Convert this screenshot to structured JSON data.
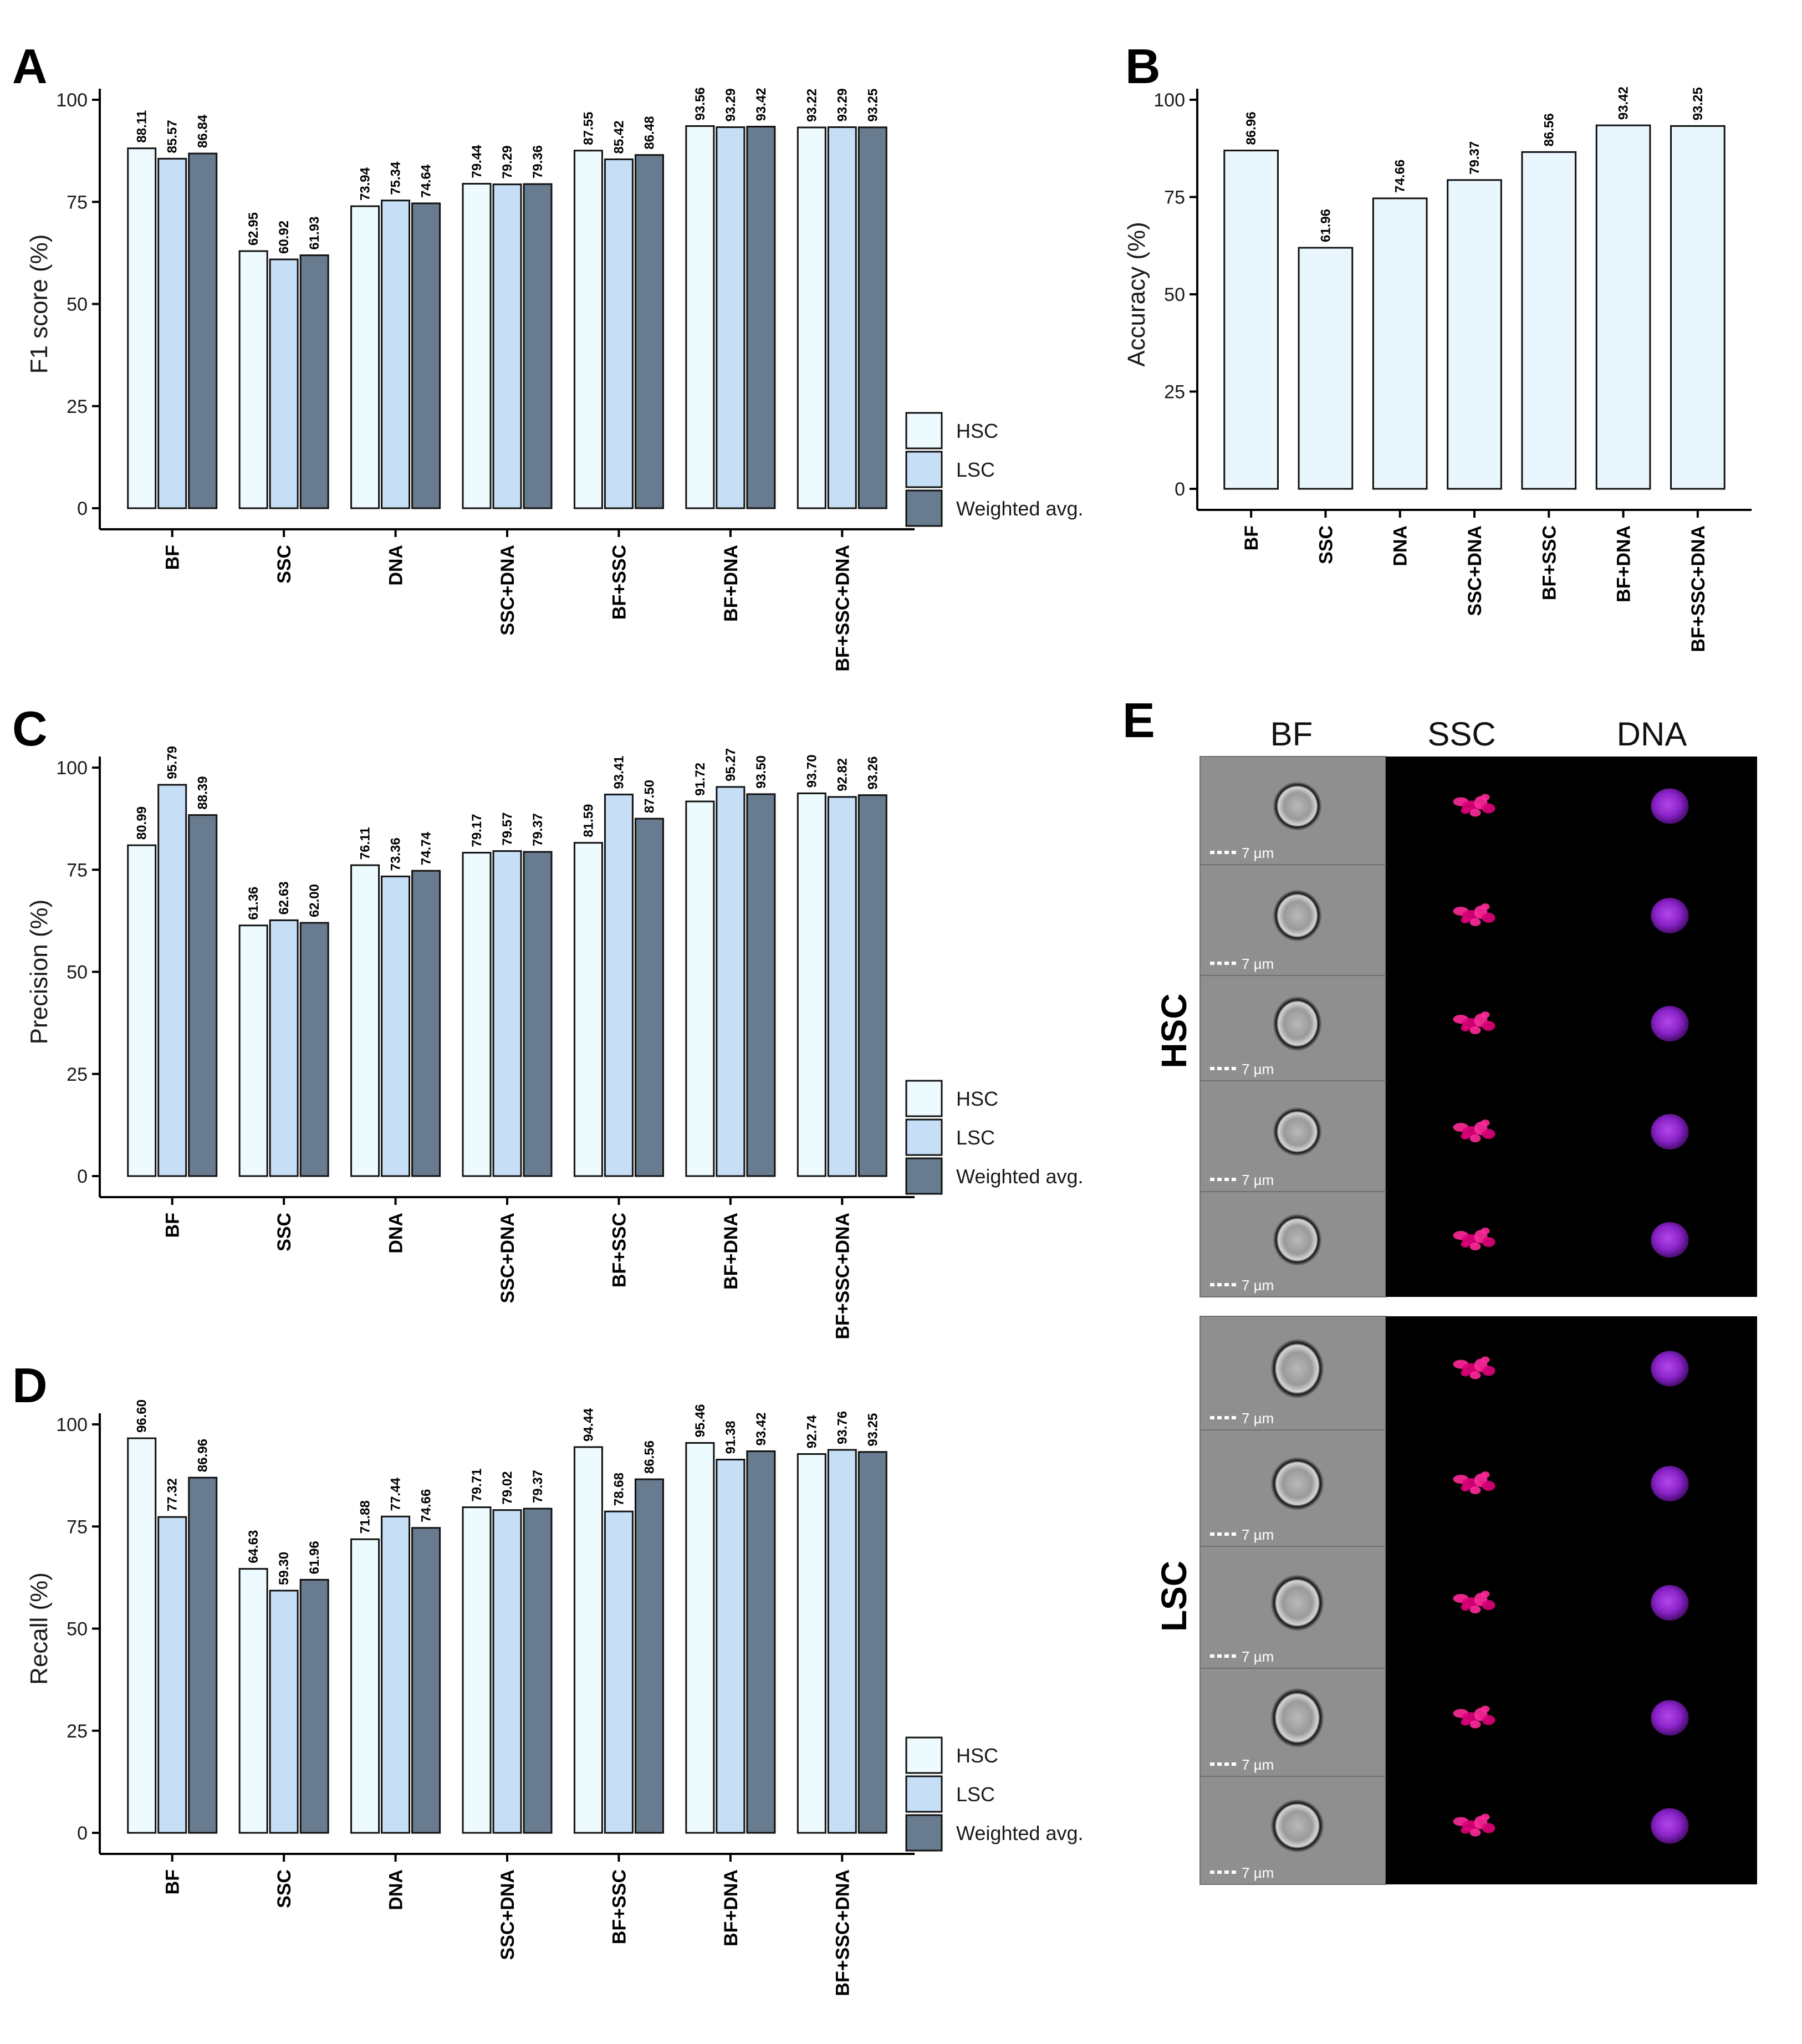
{
  "chart_data": [
    {
      "id": "A",
      "panel_label": "A",
      "type": "bar",
      "ylabel": "F1 score (%)",
      "ylim": [
        0,
        100
      ],
      "yticks": [
        0,
        25,
        50,
        75,
        100
      ],
      "categories": [
        "BF",
        "SSC",
        "DNA",
        "SSC+DNA",
        "BF+SSC",
        "BF+DNA",
        "BF+SSC+DNA"
      ],
      "series": [
        {
          "name": "HSC",
          "values": [
            88.11,
            62.95,
            73.94,
            79.44,
            87.55,
            93.56,
            93.22
          ],
          "labels": [
            "88.11",
            "62.95",
            "73.94",
            "79.44",
            "87.55",
            "93.56",
            "93.22"
          ]
        },
        {
          "name": "LSC",
          "values": [
            85.57,
            60.92,
            75.34,
            79.29,
            85.42,
            93.29,
            93.29
          ],
          "labels": [
            "85.57",
            "60.92",
            "75.34",
            "79.29",
            "85.42",
            "93.29",
            "93.29"
          ]
        },
        {
          "name": "Weighted avg.",
          "values": [
            86.84,
            61.93,
            74.64,
            79.36,
            86.48,
            93.42,
            93.25
          ],
          "labels": [
            "86.84",
            "61.93",
            "74.64",
            "79.36",
            "86.48",
            "93.42",
            "93.25"
          ]
        }
      ],
      "legend": [
        "HSC",
        "LSC",
        "Weighted avg."
      ],
      "legend_position": "bottom-right"
    },
    {
      "id": "B",
      "panel_label": "B",
      "type": "bar",
      "ylabel": "Accuracy (%)",
      "ylim": [
        0,
        100
      ],
      "yticks": [
        0,
        25,
        50,
        75,
        100
      ],
      "categories": [
        "BF",
        "SSC",
        "DNA",
        "SSC+DNA",
        "BF+SSC",
        "BF+DNA",
        "BF+SSC+DNA"
      ],
      "series": [
        {
          "name": "Accuracy",
          "values": [
            86.96,
            61.96,
            74.66,
            79.37,
            86.56,
            93.42,
            93.25
          ],
          "labels": [
            "86.96",
            "61.96",
            "74.66",
            "79.37",
            "86.56",
            "93.42",
            "93.25"
          ]
        }
      ]
    },
    {
      "id": "C",
      "panel_label": "C",
      "type": "bar",
      "ylabel": "Precision (%)",
      "ylim": [
        0,
        100
      ],
      "yticks": [
        0,
        25,
        50,
        75,
        100
      ],
      "categories": [
        "BF",
        "SSC",
        "DNA",
        "SSC+DNA",
        "BF+SSC",
        "BF+DNA",
        "BF+SSC+DNA"
      ],
      "series": [
        {
          "name": "HSC",
          "values": [
            80.99,
            61.36,
            76.11,
            79.17,
            81.59,
            91.72,
            93.7
          ],
          "labels": [
            "80.99",
            "61.36",
            "76.11",
            "79.17",
            "81.59",
            "91.72",
            "93.70"
          ]
        },
        {
          "name": "LSC",
          "values": [
            95.79,
            62.63,
            73.36,
            79.57,
            93.41,
            95.27,
            92.82
          ],
          "labels": [
            "95.79",
            "62.63",
            "73.36",
            "79.57",
            "93.41",
            "95.27",
            "92.82"
          ]
        },
        {
          "name": "Weighted avg.",
          "values": [
            88.39,
            62.0,
            74.74,
            79.37,
            87.5,
            93.5,
            93.26
          ],
          "labels": [
            "88.39",
            "62.00",
            "74.74",
            "79.37",
            "87.50",
            "93.50",
            "93.26"
          ]
        }
      ],
      "legend": [
        "HSC",
        "LSC",
        "Weighted avg."
      ],
      "legend_position": "bottom-right"
    },
    {
      "id": "D",
      "panel_label": "D",
      "type": "bar",
      "ylabel": "Recall (%)",
      "ylim": [
        0,
        100
      ],
      "yticks": [
        0,
        25,
        50,
        75,
        100
      ],
      "categories": [
        "BF",
        "SSC",
        "DNA",
        "SSC+DNA",
        "BF+SSC",
        "BF+DNA",
        "BF+SSC+DNA"
      ],
      "series": [
        {
          "name": "HSC",
          "values": [
            96.6,
            64.63,
            71.88,
            79.71,
            94.44,
            95.46,
            92.74
          ],
          "labels": [
            "96.60",
            "64.63",
            "71.88",
            "79.71",
            "94.44",
            "95.46",
            "92.74"
          ]
        },
        {
          "name": "LSC",
          "values": [
            77.32,
            59.3,
            77.44,
            79.02,
            78.68,
            91.38,
            93.76
          ],
          "labels": [
            "77.32",
            "59.30",
            "77.44",
            "79.02",
            "78.68",
            "91.38",
            "93.76"
          ]
        },
        {
          "name": "Weighted avg.",
          "values": [
            86.96,
            61.96,
            74.66,
            79.37,
            86.56,
            93.42,
            93.25
          ],
          "labels": [
            "86.96",
            "61.96",
            "74.66",
            "79.37",
            "86.56",
            "93.42",
            "93.25"
          ]
        }
      ],
      "legend": [
        "HSC",
        "LSC",
        "Weighted avg."
      ],
      "legend_position": "bottom-right"
    }
  ],
  "colors": {
    "HSC": "#eefbfe",
    "LSC": "#c6dff6",
    "Weighted avg.": "#687b8f",
    "Accuracy": "#eaf6fe",
    "axis": "#000000"
  },
  "panel_e": {
    "label": "E",
    "columns": [
      "BF",
      "SSC",
      "DNA"
    ],
    "groups": [
      {
        "name": "HSC",
        "cells": 5
      },
      {
        "name": "LSC",
        "cells": 5
      }
    ],
    "scale_bar": "7 µm"
  }
}
